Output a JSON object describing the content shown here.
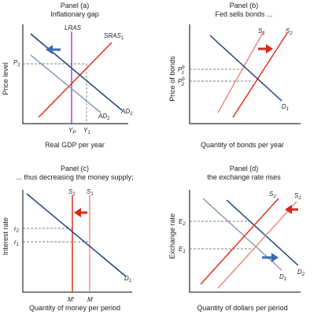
{
  "panels": {
    "a": {
      "title": "Panel (a)",
      "subtitle": "Inflationary gap",
      "xlabel": "Real GDP per year",
      "ylabel": "Price level",
      "labels": {
        "lras": "LRAS",
        "sras": "SRAS",
        "sras_sub": "1",
        "ad1": "AD",
        "ad1_sub": "1",
        "ad2": "AD",
        "ad2_sub": "2",
        "p1": "P",
        "p1_sub": "1",
        "yp": "Y",
        "yp_sub": "P",
        "y1": "Y",
        "y1_sub": "1"
      }
    },
    "b": {
      "title": "Panel (b)",
      "subtitle": "Fed sells bonds ...",
      "xlabel": "Quantity of bonds per year",
      "ylabel": "Price of bonds",
      "labels": {
        "s1": "S",
        "s1_sub": "1",
        "s2": "S",
        "s2_sub": "2",
        "d1": "D",
        "d1_sub": "1",
        "pb1": "P",
        "pb1_sup": "b",
        "pb1_sub": "1",
        "pb2": "P",
        "pb2_sup": "b",
        "pb2_sub": "2"
      }
    },
    "c": {
      "title": "Panel (c)",
      "subtitle": "... thus decreasing the money supply;",
      "xlabel": "Quantity of money per period",
      "ylabel": "Interest rate",
      "labels": {
        "s2": "S",
        "s2_sub": "2",
        "s1": "S",
        "s1_sub": "1",
        "d1": "D",
        "d1_sub": "1",
        "r2": "r",
        "r2_sub": "2",
        "r1": "r",
        "r1_sub": "1",
        "m_prime": "M'",
        "m": "M"
      }
    },
    "d": {
      "title": "Panel (d)",
      "subtitle": "the exchange rate rises",
      "xlabel": "Quantity of dollars per period",
      "ylabel": "Exchange rate",
      "labels": {
        "s2": "S",
        "s2_sub": "2",
        "s1": "S",
        "s1_sub": "1",
        "d1": "D",
        "d1_sub": "1",
        "d2": "D",
        "d2_sub": "2",
        "e2": "E",
        "e2_sub": "2",
        "e1": "E",
        "e1_sub": "1"
      }
    }
  },
  "colors": {
    "navy": "#1f3f7a",
    "steel": "#8a9ab8",
    "red": "#e0301e",
    "pink": "#e8857a",
    "purple": "#8a2be2",
    "arrow_blue": "#3a6bb0",
    "arrow_red": "#d62818"
  }
}
